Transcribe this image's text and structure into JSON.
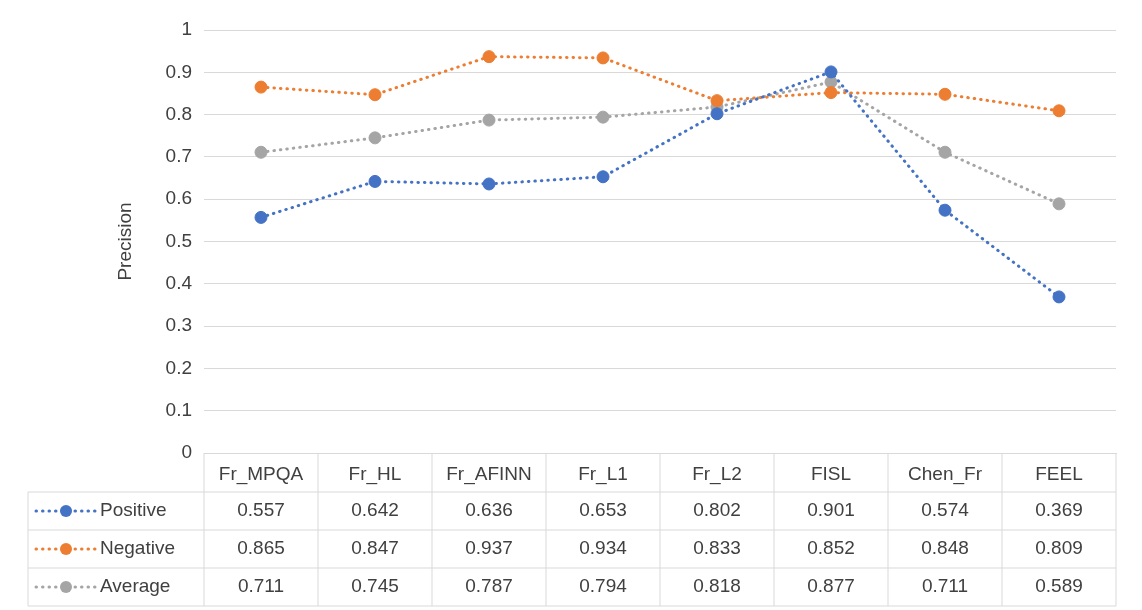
{
  "chart_data": {
    "type": "line",
    "ylabel": "Precision",
    "categories": [
      "Fr_MPQA",
      "Fr_HL",
      "Fr_AFINN",
      "Fr_L1",
      "Fr_L2",
      "FISL",
      "Chen_Fr",
      "FEEL"
    ],
    "series": [
      {
        "name": "Positive",
        "color": "#4472c4",
        "values": [
          0.557,
          0.642,
          0.636,
          0.653,
          0.802,
          0.901,
          0.574,
          0.369
        ]
      },
      {
        "name": "Negative",
        "color": "#ed7d31",
        "values": [
          0.865,
          0.847,
          0.937,
          0.934,
          0.833,
          0.852,
          0.848,
          0.809
        ]
      },
      {
        "name": "Average",
        "color": "#a5a5a5",
        "values": [
          0.711,
          0.745,
          0.787,
          0.794,
          0.818,
          0.877,
          0.711,
          0.589
        ]
      }
    ],
    "ylim": [
      0,
      1
    ],
    "yticks": [
      0,
      0.1,
      0.2,
      0.3,
      0.4,
      0.5,
      0.6,
      0.7,
      0.8,
      0.9,
      1
    ],
    "grid": "y",
    "legend": "bottom",
    "marker": "circle",
    "line_style": "dotted",
    "data_labels": true
  }
}
